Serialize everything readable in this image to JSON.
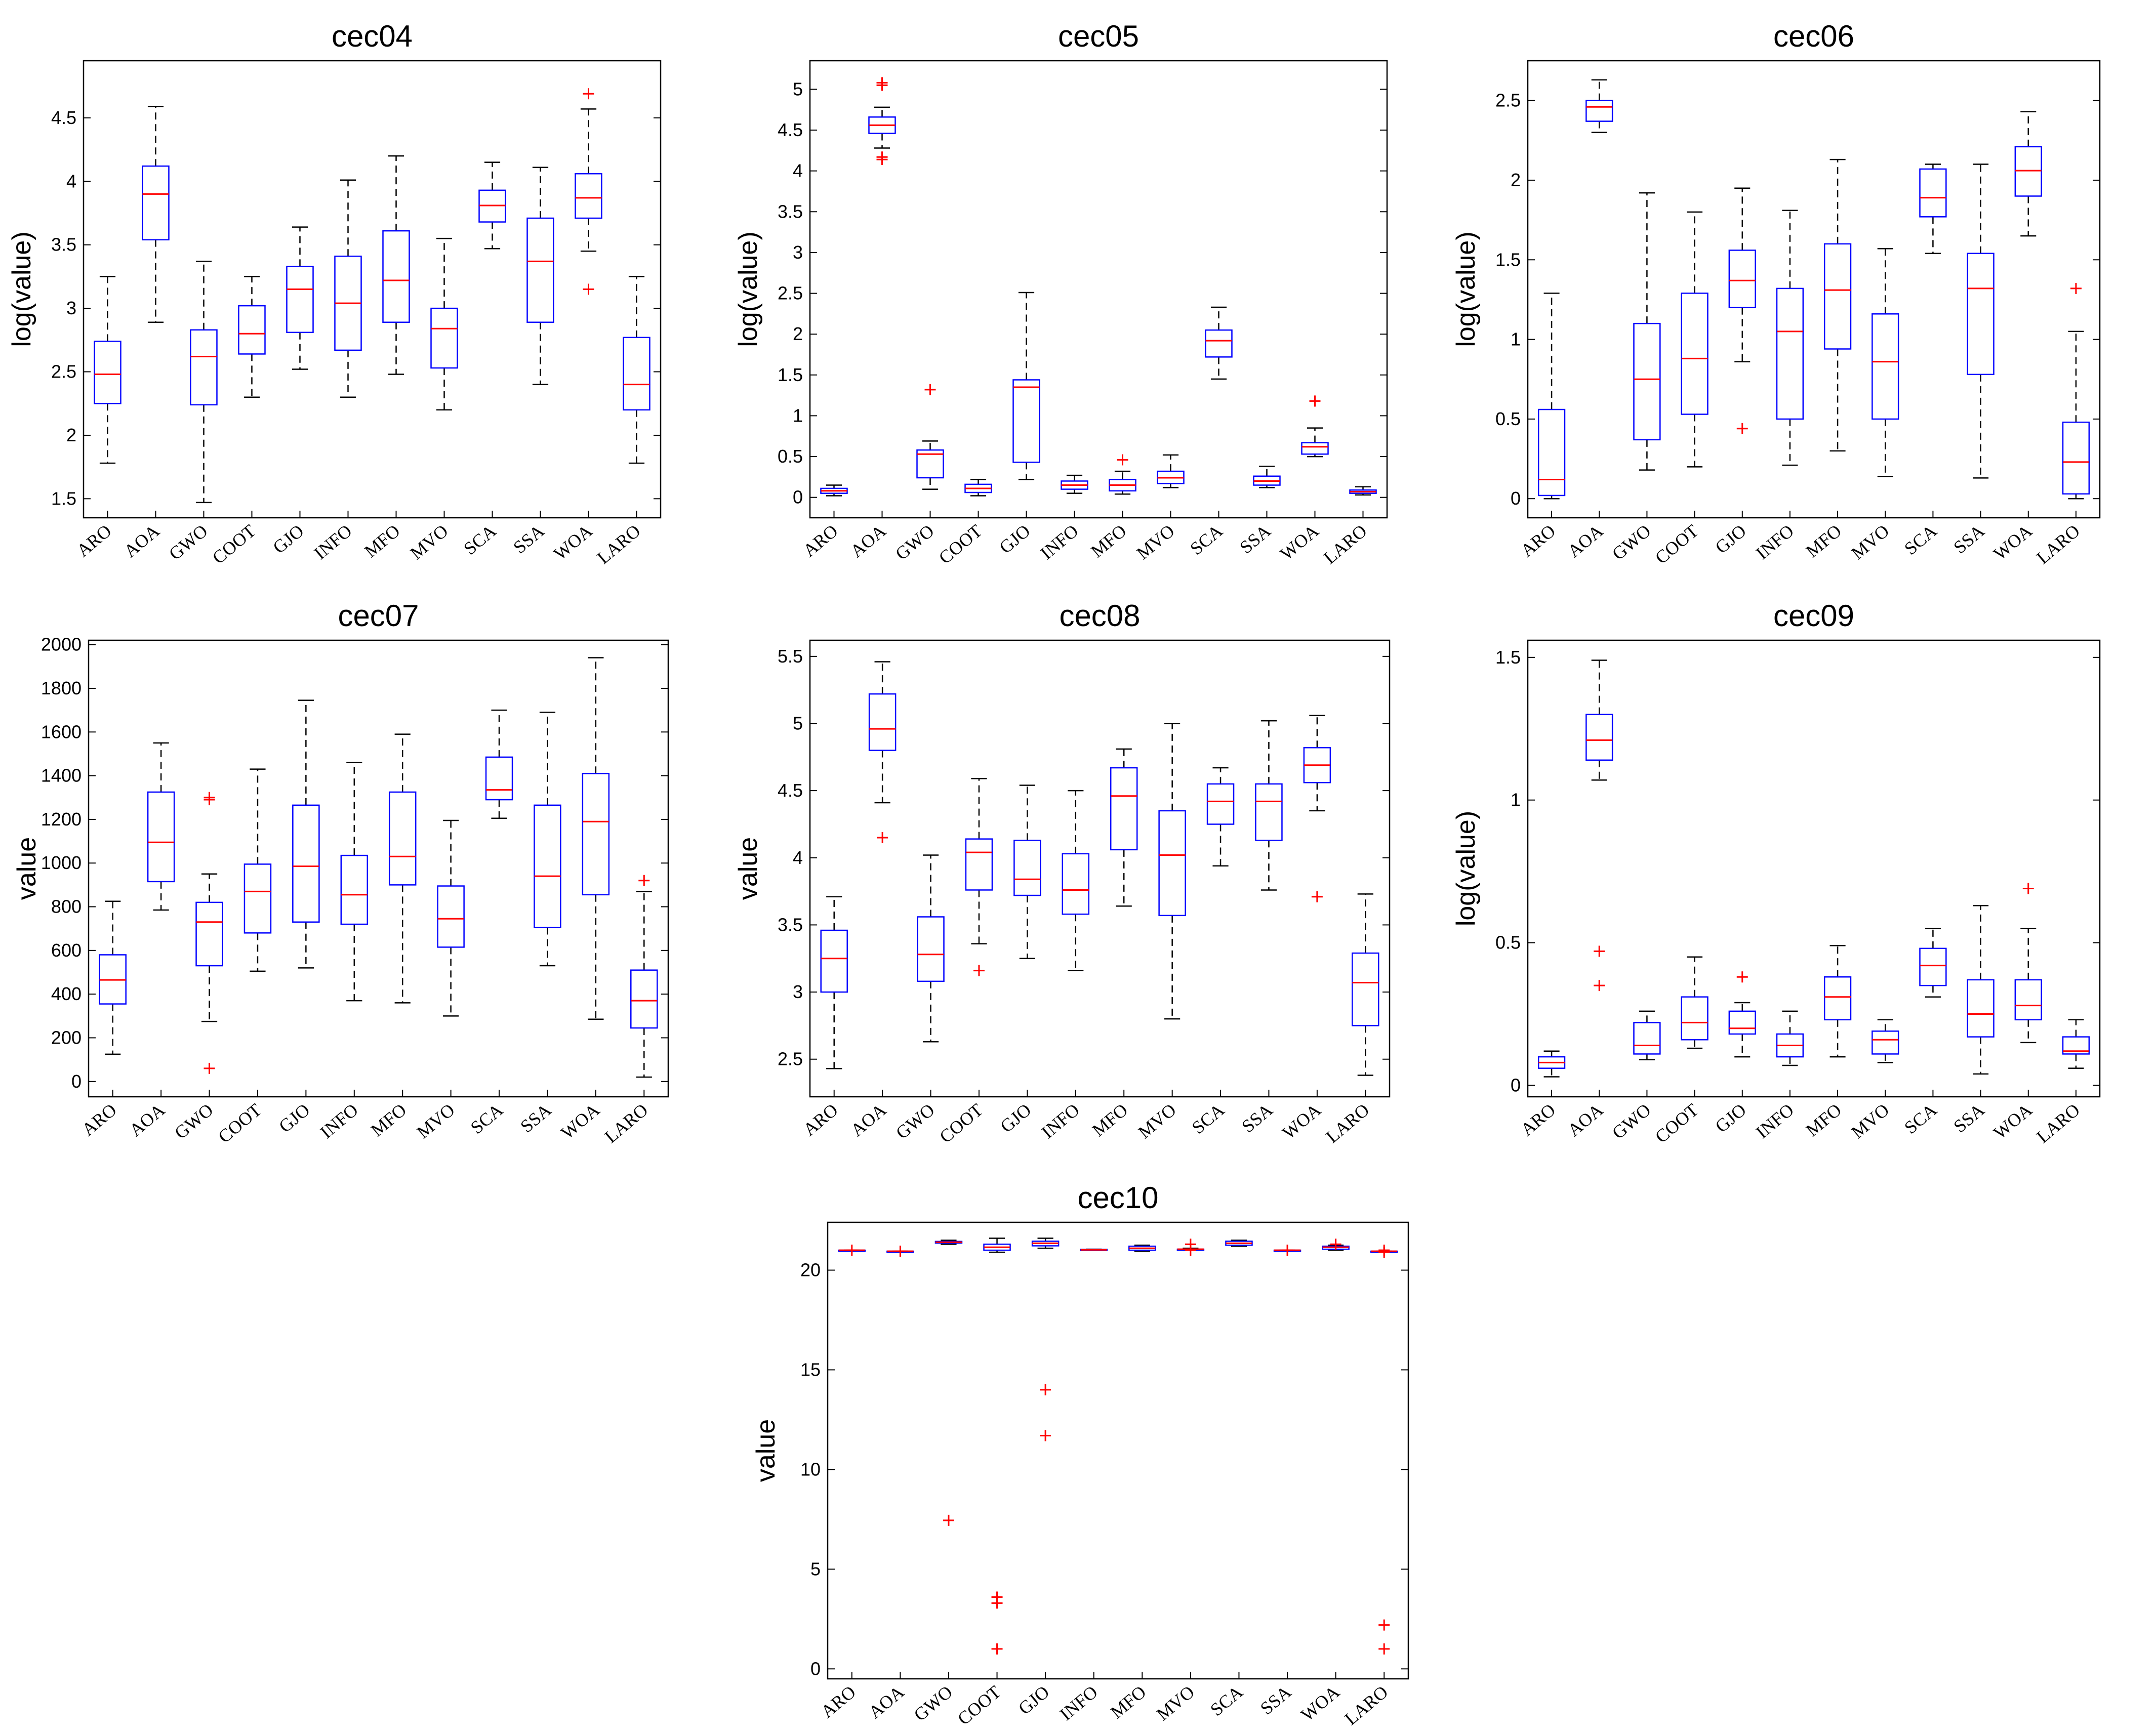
{
  "chart_data": [
    {
      "id": "cec04",
      "type": "boxplot",
      "title": "cec04",
      "ylabel": "log(value)",
      "ylim": [
        1.35,
        4.95
      ],
      "yticks": [
        "1.5",
        "2",
        "2.5",
        "3",
        "3.5",
        "4",
        "4.5"
      ],
      "ytick_values": [
        1.5,
        2,
        2.5,
        3,
        3.5,
        4,
        4.5
      ],
      "categories": [
        "ARO",
        "AOA",
        "GWO",
        "COOT",
        "GJO",
        "INFO",
        "MFO",
        "MVO",
        "SCA",
        "SSA",
        "WOA",
        "LARO"
      ],
      "boxes": [
        {
          "min": 1.78,
          "q1": 2.25,
          "median": 2.48,
          "q3": 2.74,
          "max": 3.25,
          "outliers": []
        },
        {
          "min": 2.89,
          "q1": 3.54,
          "median": 3.9,
          "q3": 4.12,
          "max": 4.59,
          "outliers": []
        },
        {
          "min": 1.47,
          "q1": 2.24,
          "median": 2.62,
          "q3": 2.83,
          "max": 3.37,
          "outliers": []
        },
        {
          "min": 2.3,
          "q1": 2.64,
          "median": 2.8,
          "q3": 3.02,
          "max": 3.25,
          "outliers": []
        },
        {
          "min": 2.52,
          "q1": 2.81,
          "median": 3.15,
          "q3": 3.33,
          "max": 3.64,
          "outliers": []
        },
        {
          "min": 2.3,
          "q1": 2.67,
          "median": 3.04,
          "q3": 3.41,
          "max": 4.01,
          "outliers": []
        },
        {
          "min": 2.48,
          "q1": 2.89,
          "median": 3.22,
          "q3": 3.61,
          "max": 4.2,
          "outliers": []
        },
        {
          "min": 2.2,
          "q1": 2.53,
          "median": 2.84,
          "q3": 3.0,
          "max": 3.55,
          "outliers": []
        },
        {
          "min": 3.47,
          "q1": 3.68,
          "median": 3.81,
          "q3": 3.93,
          "max": 4.15,
          "outliers": []
        },
        {
          "min": 2.4,
          "q1": 2.89,
          "median": 3.37,
          "q3": 3.71,
          "max": 4.11,
          "outliers": []
        },
        {
          "min": 3.45,
          "q1": 3.71,
          "median": 3.87,
          "q3": 4.06,
          "max": 4.57,
          "outliers": [
            4.69,
            3.15
          ]
        },
        {
          "min": 1.78,
          "q1": 2.2,
          "median": 2.4,
          "q3": 2.77,
          "max": 3.25,
          "outliers": []
        }
      ]
    },
    {
      "id": "cec05",
      "type": "boxplot",
      "title": "cec05",
      "ylabel": "log(value)",
      "ylim": [
        -0.25,
        5.35
      ],
      "yticks": [
        "0",
        "0.5",
        "1",
        "1.5",
        "2",
        "2.5",
        "3",
        "3.5",
        "4",
        "4.5",
        "5"
      ],
      "ytick_values": [
        0,
        0.5,
        1,
        1.5,
        2,
        2.5,
        3,
        3.5,
        4,
        4.5,
        5
      ],
      "categories": [
        "ARO",
        "AOA",
        "GWO",
        "COOT",
        "GJO",
        "INFO",
        "MFO",
        "MVO",
        "SCA",
        "SSA",
        "WOA",
        "LARO"
      ],
      "boxes": [
        {
          "min": 0.02,
          "q1": 0.05,
          "median": 0.08,
          "q3": 0.11,
          "max": 0.15,
          "outliers": []
        },
        {
          "min": 4.28,
          "q1": 4.46,
          "median": 4.56,
          "q3": 4.66,
          "max": 4.78,
          "outliers": [
            5.08,
            5.05,
            4.17,
            4.14
          ]
        },
        {
          "min": 0.1,
          "q1": 0.24,
          "median": 0.53,
          "q3": 0.58,
          "max": 0.69,
          "outliers": [
            1.32
          ]
        },
        {
          "min": 0.02,
          "q1": 0.06,
          "median": 0.11,
          "q3": 0.16,
          "max": 0.22,
          "outliers": []
        },
        {
          "min": 0.22,
          "q1": 0.43,
          "median": 1.35,
          "q3": 1.44,
          "max": 2.51,
          "outliers": []
        },
        {
          "min": 0.05,
          "q1": 0.1,
          "median": 0.15,
          "q3": 0.2,
          "max": 0.27,
          "outliers": []
        },
        {
          "min": 0.04,
          "q1": 0.08,
          "median": 0.15,
          "q3": 0.22,
          "max": 0.32,
          "outliers": [
            0.46
          ]
        },
        {
          "min": 0.12,
          "q1": 0.17,
          "median": 0.24,
          "q3": 0.32,
          "max": 0.52,
          "outliers": []
        },
        {
          "min": 1.45,
          "q1": 1.72,
          "median": 1.92,
          "q3": 2.05,
          "max": 2.33,
          "outliers": []
        },
        {
          "min": 0.12,
          "q1": 0.15,
          "median": 0.2,
          "q3": 0.26,
          "max": 0.38,
          "outliers": []
        },
        {
          "min": 0.5,
          "q1": 0.53,
          "median": 0.62,
          "q3": 0.67,
          "max": 0.85,
          "outliers": [
            1.18
          ]
        },
        {
          "min": 0.03,
          "q1": 0.05,
          "median": 0.07,
          "q3": 0.09,
          "max": 0.13,
          "outliers": []
        }
      ]
    },
    {
      "id": "cec06",
      "type": "boxplot",
      "title": "cec06",
      "ylabel": "log(value)",
      "ylim": [
        -0.12,
        2.75
      ],
      "yticks": [
        "0",
        "0.5",
        "1",
        "1.5",
        "2",
        "2.5"
      ],
      "ytick_values": [
        0,
        0.5,
        1,
        1.5,
        2,
        2.5
      ],
      "categories": [
        "ARO",
        "AOA",
        "GWO",
        "COOT",
        "GJO",
        "INFO",
        "MFO",
        "MVO",
        "SCA",
        "SSA",
        "WOA",
        "LARO"
      ],
      "boxes": [
        {
          "min": 0.0,
          "q1": 0.02,
          "median": 0.12,
          "q3": 0.56,
          "max": 1.29,
          "outliers": []
        },
        {
          "min": 2.3,
          "q1": 2.37,
          "median": 2.46,
          "q3": 2.5,
          "max": 2.63,
          "outliers": []
        },
        {
          "min": 0.18,
          "q1": 0.37,
          "median": 0.75,
          "q3": 1.1,
          "max": 1.92,
          "outliers": []
        },
        {
          "min": 0.2,
          "q1": 0.53,
          "median": 0.88,
          "q3": 1.29,
          "max": 1.8,
          "outliers": []
        },
        {
          "min": 0.86,
          "q1": 1.2,
          "median": 1.37,
          "q3": 1.56,
          "max": 1.95,
          "outliers": [
            0.44
          ]
        },
        {
          "min": 0.21,
          "q1": 0.5,
          "median": 1.05,
          "q3": 1.32,
          "max": 1.81,
          "outliers": []
        },
        {
          "min": 0.3,
          "q1": 0.94,
          "median": 1.31,
          "q3": 1.6,
          "max": 2.13,
          "outliers": []
        },
        {
          "min": 0.14,
          "q1": 0.5,
          "median": 0.86,
          "q3": 1.16,
          "max": 1.57,
          "outliers": []
        },
        {
          "min": 1.54,
          "q1": 1.77,
          "median": 1.89,
          "q3": 2.07,
          "max": 2.1,
          "outliers": []
        },
        {
          "min": 0.13,
          "q1": 0.78,
          "median": 1.32,
          "q3": 1.54,
          "max": 2.1,
          "outliers": []
        },
        {
          "min": 1.65,
          "q1": 1.9,
          "median": 2.06,
          "q3": 2.21,
          "max": 2.43,
          "outliers": []
        },
        {
          "min": 0.0,
          "q1": 0.03,
          "median": 0.23,
          "q3": 0.48,
          "max": 1.05,
          "outliers": [
            1.32
          ]
        }
      ]
    },
    {
      "id": "cec07",
      "type": "boxplot",
      "title": "cec07",
      "ylabel": "value",
      "ylim": [
        -70,
        2020
      ],
      "yticks": [
        "0",
        "200",
        "400",
        "600",
        "800",
        "1000",
        "1200",
        "1400",
        "1600",
        "1800",
        "2000"
      ],
      "ytick_values": [
        0,
        200,
        400,
        600,
        800,
        1000,
        1200,
        1400,
        1600,
        1800,
        2000
      ],
      "categories": [
        "ARO",
        "AOA",
        "GWO",
        "COOT",
        "GJO",
        "INFO",
        "MFO",
        "MVO",
        "SCA",
        "SSA",
        "WOA",
        "LARO"
      ],
      "boxes": [
        {
          "min": 125,
          "q1": 355,
          "median": 465,
          "q3": 580,
          "max": 825,
          "outliers": []
        },
        {
          "min": 785,
          "q1": 915,
          "median": 1095,
          "q3": 1325,
          "max": 1550,
          "outliers": []
        },
        {
          "min": 275,
          "q1": 530,
          "median": 730,
          "q3": 820,
          "max": 950,
          "outliers": [
            1300,
            1290,
            60
          ]
        },
        {
          "min": 505,
          "q1": 680,
          "median": 870,
          "q3": 995,
          "max": 1430,
          "outliers": []
        },
        {
          "min": 520,
          "q1": 730,
          "median": 985,
          "q3": 1265,
          "max": 1745,
          "outliers": []
        },
        {
          "min": 370,
          "q1": 720,
          "median": 855,
          "q3": 1035,
          "max": 1460,
          "outliers": []
        },
        {
          "min": 360,
          "q1": 900,
          "median": 1030,
          "q3": 1325,
          "max": 1590,
          "outliers": []
        },
        {
          "min": 300,
          "q1": 615,
          "median": 745,
          "q3": 895,
          "max": 1195,
          "outliers": []
        },
        {
          "min": 1205,
          "q1": 1290,
          "median": 1335,
          "q3": 1485,
          "max": 1700,
          "outliers": []
        },
        {
          "min": 530,
          "q1": 705,
          "median": 940,
          "q3": 1265,
          "max": 1690,
          "outliers": []
        },
        {
          "min": 285,
          "q1": 855,
          "median": 1190,
          "q3": 1410,
          "max": 1940,
          "outliers": []
        },
        {
          "min": 20,
          "q1": 245,
          "median": 370,
          "q3": 510,
          "max": 870,
          "outliers": [
            920
          ]
        }
      ]
    },
    {
      "id": "cec08",
      "type": "boxplot",
      "title": "cec08",
      "ylabel": "value",
      "ylim": [
        2.22,
        5.62
      ],
      "yticks": [
        "2.5",
        "3",
        "3.5",
        "4",
        "4.5",
        "5",
        "5.5"
      ],
      "ytick_values": [
        2.5,
        3,
        3.5,
        4,
        4.5,
        5,
        5.5
      ],
      "categories": [
        "ARO",
        "AOA",
        "GWO",
        "COOT",
        "GJO",
        "INFO",
        "MFO",
        "MVO",
        "SCA",
        "SSA",
        "WOA",
        "LARO"
      ],
      "boxes": [
        {
          "min": 2.43,
          "q1": 3.0,
          "median": 3.25,
          "q3": 3.46,
          "max": 3.71,
          "outliers": []
        },
        {
          "min": 4.41,
          "q1": 4.8,
          "median": 4.96,
          "q3": 5.22,
          "max": 5.46,
          "outliers": [
            4.15
          ]
        },
        {
          "min": 2.63,
          "q1": 3.08,
          "median": 3.28,
          "q3": 3.56,
          "max": 4.02,
          "outliers": []
        },
        {
          "min": 3.36,
          "q1": 3.76,
          "median": 4.04,
          "q3": 4.14,
          "max": 4.59,
          "outliers": [
            3.16
          ]
        },
        {
          "min": 3.25,
          "q1": 3.72,
          "median": 3.84,
          "q3": 4.13,
          "max": 4.54,
          "outliers": []
        },
        {
          "min": 3.16,
          "q1": 3.58,
          "median": 3.76,
          "q3": 4.03,
          "max": 4.5,
          "outliers": []
        },
        {
          "min": 3.64,
          "q1": 4.06,
          "median": 4.46,
          "q3": 4.67,
          "max": 4.81,
          "outliers": []
        },
        {
          "min": 2.8,
          "q1": 3.57,
          "median": 4.02,
          "q3": 4.35,
          "max": 5.0,
          "outliers": []
        },
        {
          "min": 3.94,
          "q1": 4.25,
          "median": 4.42,
          "q3": 4.55,
          "max": 4.67,
          "outliers": []
        },
        {
          "min": 3.76,
          "q1": 4.13,
          "median": 4.42,
          "q3": 4.55,
          "max": 5.02,
          "outliers": []
        },
        {
          "min": 4.35,
          "q1": 4.56,
          "median": 4.69,
          "q3": 4.82,
          "max": 5.06,
          "outliers": [
            3.71
          ]
        },
        {
          "min": 2.38,
          "q1": 2.75,
          "median": 3.07,
          "q3": 3.29,
          "max": 3.73,
          "outliers": []
        }
      ]
    },
    {
      "id": "cec09",
      "type": "boxplot",
      "title": "cec09",
      "ylabel": "log(value)",
      "ylim": [
        -0.04,
        1.56
      ],
      "yticks": [
        "0",
        "0.5",
        "1",
        "1.5"
      ],
      "ytick_values": [
        0,
        0.5,
        1,
        1.5
      ],
      "categories": [
        "ARO",
        "AOA",
        "GWO",
        "COOT",
        "GJO",
        "INFO",
        "MFO",
        "MVO",
        "SCA",
        "SSA",
        "WOA",
        "LARO"
      ],
      "boxes": [
        {
          "min": 0.03,
          "q1": 0.06,
          "median": 0.08,
          "q3": 0.1,
          "max": 0.12,
          "outliers": []
        },
        {
          "min": 1.07,
          "q1": 1.14,
          "median": 1.21,
          "q3": 1.3,
          "max": 1.49,
          "outliers": [
            0.47,
            0.35
          ]
        },
        {
          "min": 0.09,
          "q1": 0.11,
          "median": 0.14,
          "q3": 0.22,
          "max": 0.26,
          "outliers": []
        },
        {
          "min": 0.13,
          "q1": 0.16,
          "median": 0.22,
          "q3": 0.31,
          "max": 0.45,
          "outliers": []
        },
        {
          "min": 0.1,
          "q1": 0.18,
          "median": 0.2,
          "q3": 0.26,
          "max": 0.29,
          "outliers": [
            0.38
          ]
        },
        {
          "min": 0.07,
          "q1": 0.1,
          "median": 0.14,
          "q3": 0.18,
          "max": 0.26,
          "outliers": []
        },
        {
          "min": 0.1,
          "q1": 0.23,
          "median": 0.31,
          "q3": 0.38,
          "max": 0.49,
          "outliers": []
        },
        {
          "min": 0.08,
          "q1": 0.11,
          "median": 0.16,
          "q3": 0.19,
          "max": 0.23,
          "outliers": []
        },
        {
          "min": 0.31,
          "q1": 0.35,
          "median": 0.42,
          "q3": 0.48,
          "max": 0.55,
          "outliers": []
        },
        {
          "min": 0.04,
          "q1": 0.17,
          "median": 0.25,
          "q3": 0.37,
          "max": 0.63,
          "outliers": []
        },
        {
          "min": 0.15,
          "q1": 0.23,
          "median": 0.28,
          "q3": 0.37,
          "max": 0.55,
          "outliers": [
            0.69
          ]
        },
        {
          "min": 0.06,
          "q1": 0.11,
          "median": 0.12,
          "q3": 0.17,
          "max": 0.23,
          "outliers": []
        }
      ]
    },
    {
      "id": "cec10",
      "type": "boxplot",
      "title": "cec10",
      "ylabel": "value",
      "ylim": [
        -0.5,
        22.4
      ],
      "yticks": [
        "0",
        "5",
        "10",
        "15",
        "20"
      ],
      "ytick_values": [
        0,
        5,
        10,
        15,
        20
      ],
      "categories": [
        "ARO",
        "AOA",
        "GWO",
        "COOT",
        "GJO",
        "INFO",
        "MFO",
        "MVO",
        "SCA",
        "SSA",
        "WOA",
        "LARO"
      ],
      "boxes": [
        {
          "min": 21.0,
          "q1": 21.0,
          "median": 21.0,
          "q3": 21.0,
          "max": 21.0,
          "outliers": [
            21.0
          ]
        },
        {
          "min": 20.95,
          "q1": 20.95,
          "median": 20.95,
          "q3": 20.95,
          "max": 20.95,
          "outliers": [
            20.95
          ]
        },
        {
          "min": 21.3,
          "q1": 21.36,
          "median": 21.4,
          "q3": 21.44,
          "max": 21.5,
          "outliers": [
            7.45
          ]
        },
        {
          "min": 20.9,
          "q1": 21.0,
          "median": 21.15,
          "q3": 21.3,
          "max": 21.6,
          "outliers": [
            3.6,
            3.3,
            1.0
          ]
        },
        {
          "min": 21.1,
          "q1": 21.22,
          "median": 21.35,
          "q3": 21.45,
          "max": 21.6,
          "outliers": [
            14.0,
            11.7
          ]
        },
        {
          "min": 21.0,
          "q1": 21.0,
          "median": 21.02,
          "q3": 21.04,
          "max": 21.05,
          "outliers": []
        },
        {
          "min": 20.95,
          "q1": 21.0,
          "median": 21.1,
          "q3": 21.2,
          "max": 21.25,
          "outliers": []
        },
        {
          "min": 21.0,
          "q1": 21.0,
          "median": 21.05,
          "q3": 21.05,
          "max": 21.1,
          "outliers": [
            21.3,
            21.0
          ]
        },
        {
          "min": 21.2,
          "q1": 21.25,
          "median": 21.35,
          "q3": 21.45,
          "max": 21.5,
          "outliers": []
        },
        {
          "min": 21.0,
          "q1": 21.0,
          "median": 21.0,
          "q3": 21.0,
          "max": 21.0,
          "outliers": [
            21.0
          ]
        },
        {
          "min": 21.0,
          "q1": 21.05,
          "median": 21.15,
          "q3": 21.2,
          "max": 21.25,
          "outliers": [
            21.3
          ]
        },
        {
          "min": 20.95,
          "q1": 20.95,
          "median": 20.95,
          "q3": 20.95,
          "max": 20.95,
          "outliers": [
            21.0,
            20.9,
            2.2,
            1.0
          ]
        }
      ]
    }
  ],
  "colors": {
    "box": "#0000ff",
    "median": "#ff0000",
    "whisker": "#000000",
    "outlier": "#ff0000"
  }
}
